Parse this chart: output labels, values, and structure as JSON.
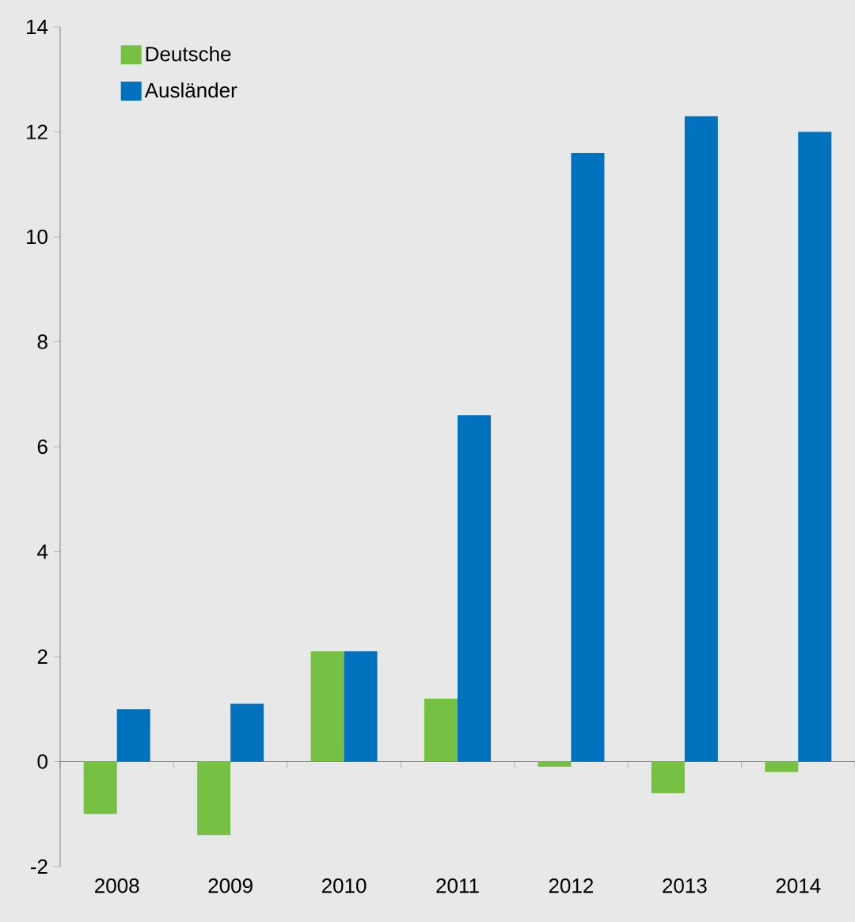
{
  "chart_data": {
    "type": "bar",
    "categories": [
      "2008",
      "2009",
      "2010",
      "2011",
      "2012",
      "2013",
      "2014"
    ],
    "series": [
      {
        "name": "Deutsche",
        "color": "#76c043",
        "values": [
          -1.0,
          -1.4,
          2.1,
          1.2,
          -0.1,
          -0.6,
          -0.2
        ]
      },
      {
        "name": "Ausländer",
        "color": "#0071bc",
        "values": [
          1.0,
          1.1,
          2.1,
          6.6,
          11.6,
          12.3,
          12.0
        ]
      }
    ],
    "ylim": [
      -2,
      14
    ],
    "yticks": [
      -2,
      0,
      2,
      4,
      6,
      8,
      10,
      12,
      14
    ],
    "legend": "top left"
  }
}
